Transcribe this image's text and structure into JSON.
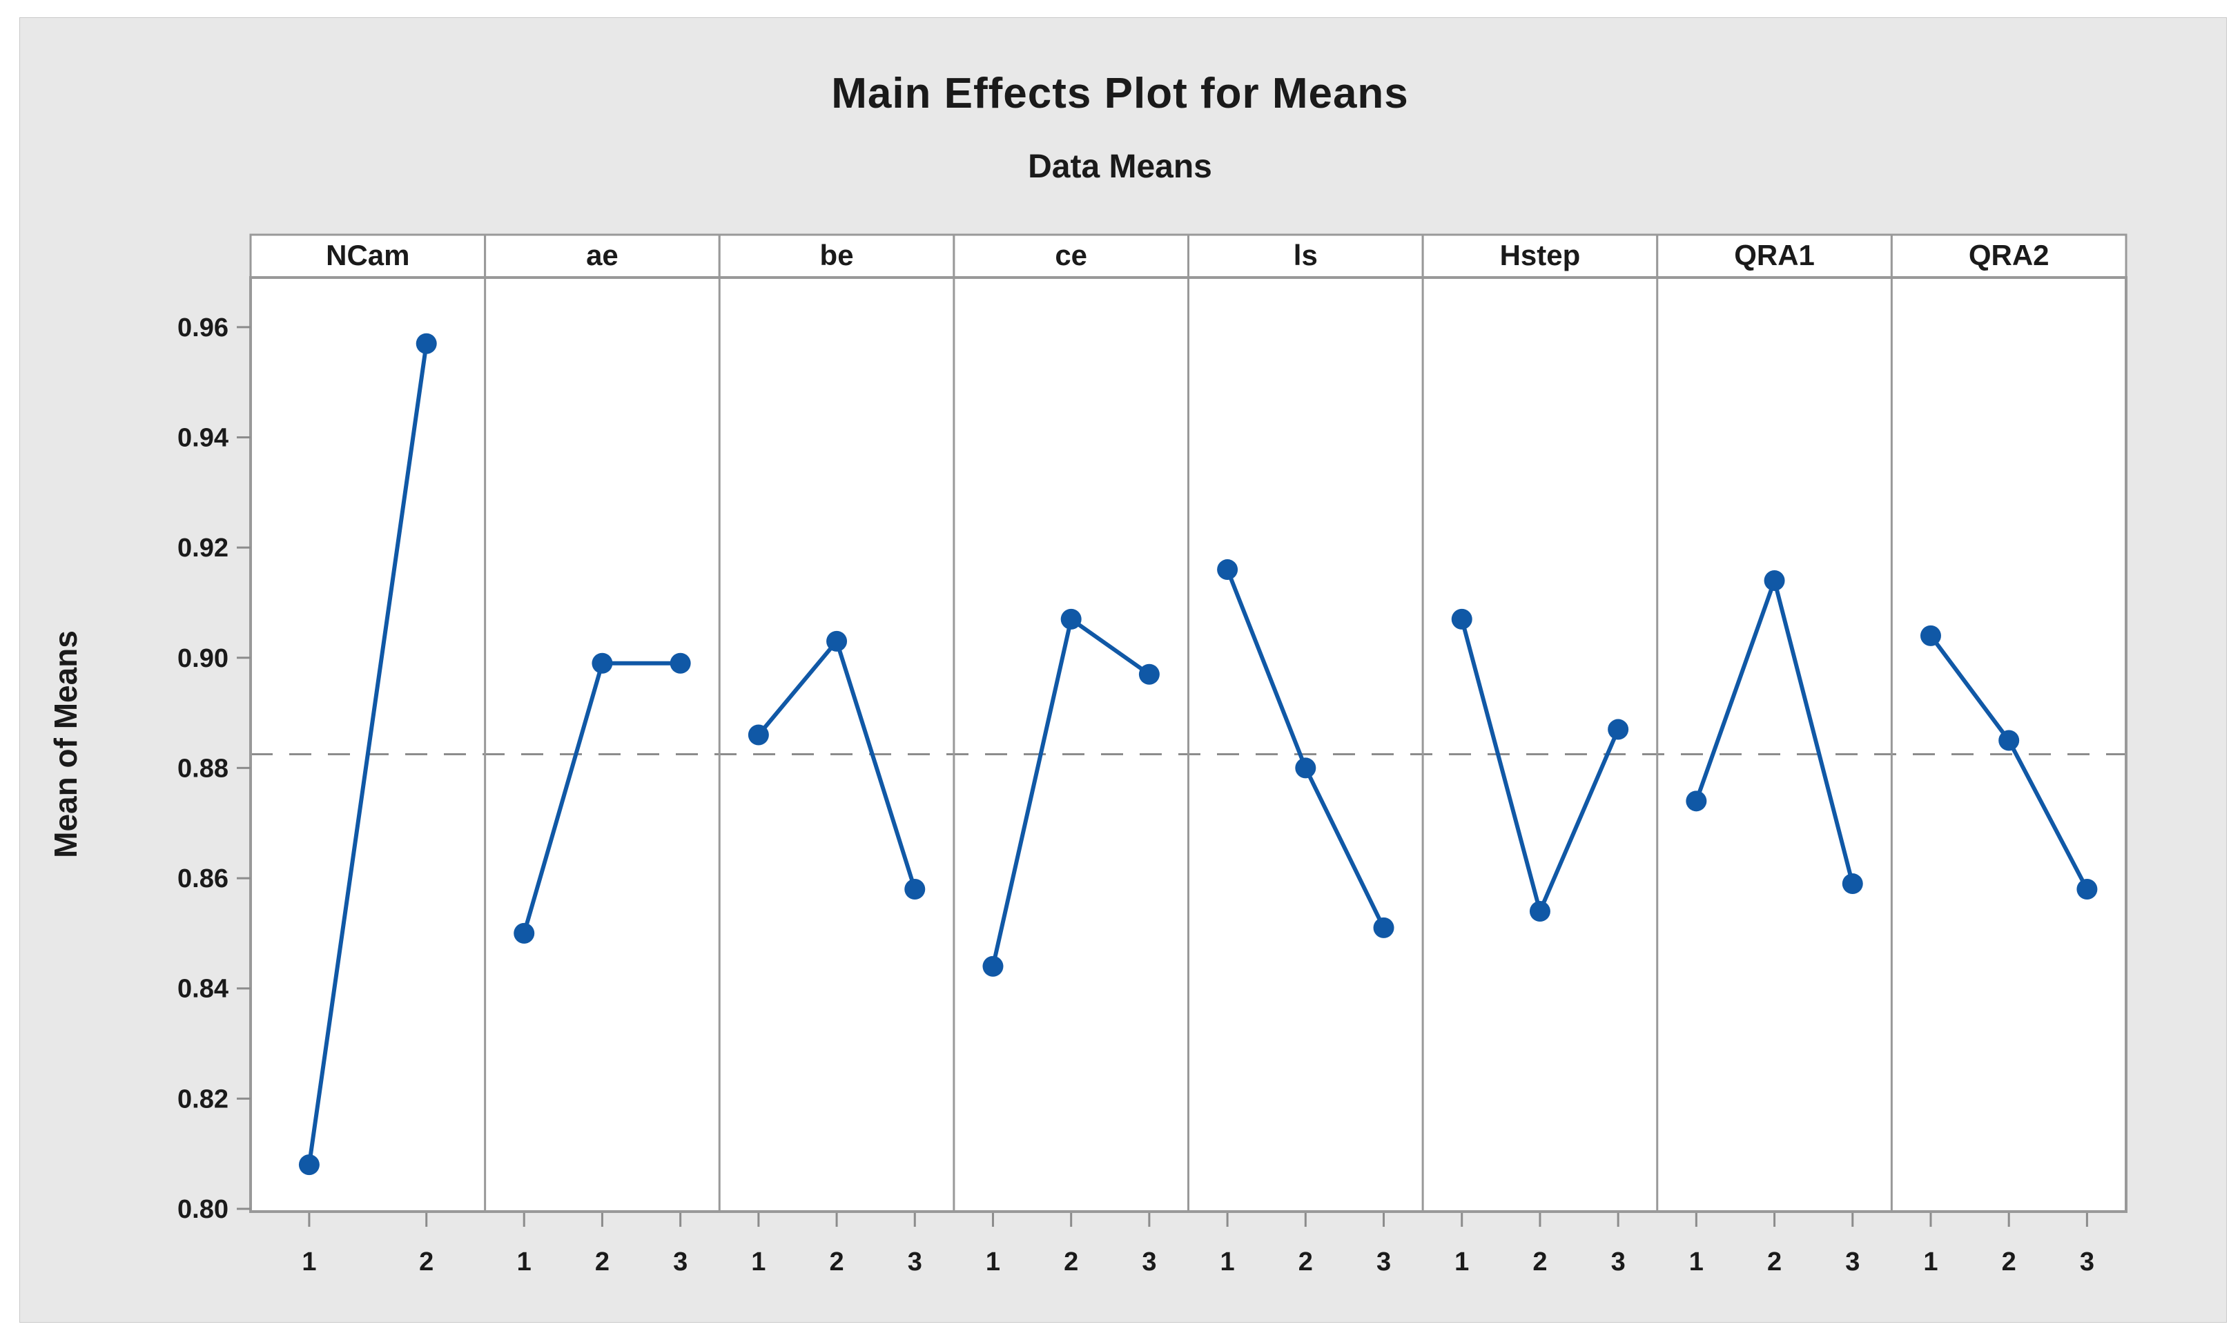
{
  "title": "Main Effects Plot for Means",
  "subtitle": "Data Means",
  "ylabel": "Mean of Means",
  "chart_data": {
    "type": "line",
    "title": "Main Effects Plot for Means",
    "subtitle": "Data Means",
    "ylabel": "Mean of Means",
    "ylim": [
      0.8,
      0.96
    ],
    "ytick_step": 0.02,
    "yticks": [
      "0.96",
      "0.94",
      "0.92",
      "0.90",
      "0.88",
      "0.86",
      "0.84",
      "0.82",
      "0.80"
    ],
    "grand_mean": 0.8825,
    "grid": false,
    "legend_position": "none",
    "panels": [
      {
        "factor": "NCam",
        "levels": [
          "1",
          "2"
        ],
        "values": [
          0.808,
          0.957
        ]
      },
      {
        "factor": "ae",
        "levels": [
          "1",
          "2",
          "3"
        ],
        "values": [
          0.85,
          0.899,
          0.899
        ]
      },
      {
        "factor": "be",
        "levels": [
          "1",
          "2",
          "3"
        ],
        "values": [
          0.886,
          0.903,
          0.858
        ]
      },
      {
        "factor": "ce",
        "levels": [
          "1",
          "2",
          "3"
        ],
        "values": [
          0.844,
          0.907,
          0.897
        ]
      },
      {
        "factor": "ls",
        "levels": [
          "1",
          "2",
          "3"
        ],
        "values": [
          0.916,
          0.88,
          0.851
        ]
      },
      {
        "factor": "Hstep",
        "levels": [
          "1",
          "2",
          "3"
        ],
        "values": [
          0.907,
          0.854,
          0.887
        ]
      },
      {
        "factor": "QRA1",
        "levels": [
          "1",
          "2",
          "3"
        ],
        "values": [
          0.874,
          0.914,
          0.859
        ]
      },
      {
        "factor": "QRA2",
        "levels": [
          "1",
          "2",
          "3"
        ],
        "values": [
          0.904,
          0.885,
          0.858
        ]
      }
    ],
    "colors": {
      "line": "#1058A6",
      "marker": "#1058A6",
      "grand_mean_line": "#8C8C8C",
      "panel_border": "#999999",
      "tick": "#8C8C8C",
      "plot_bg": "#FFFFFF",
      "figure_bg": "#E8E8E8",
      "text": "#1A1A1A"
    }
  }
}
